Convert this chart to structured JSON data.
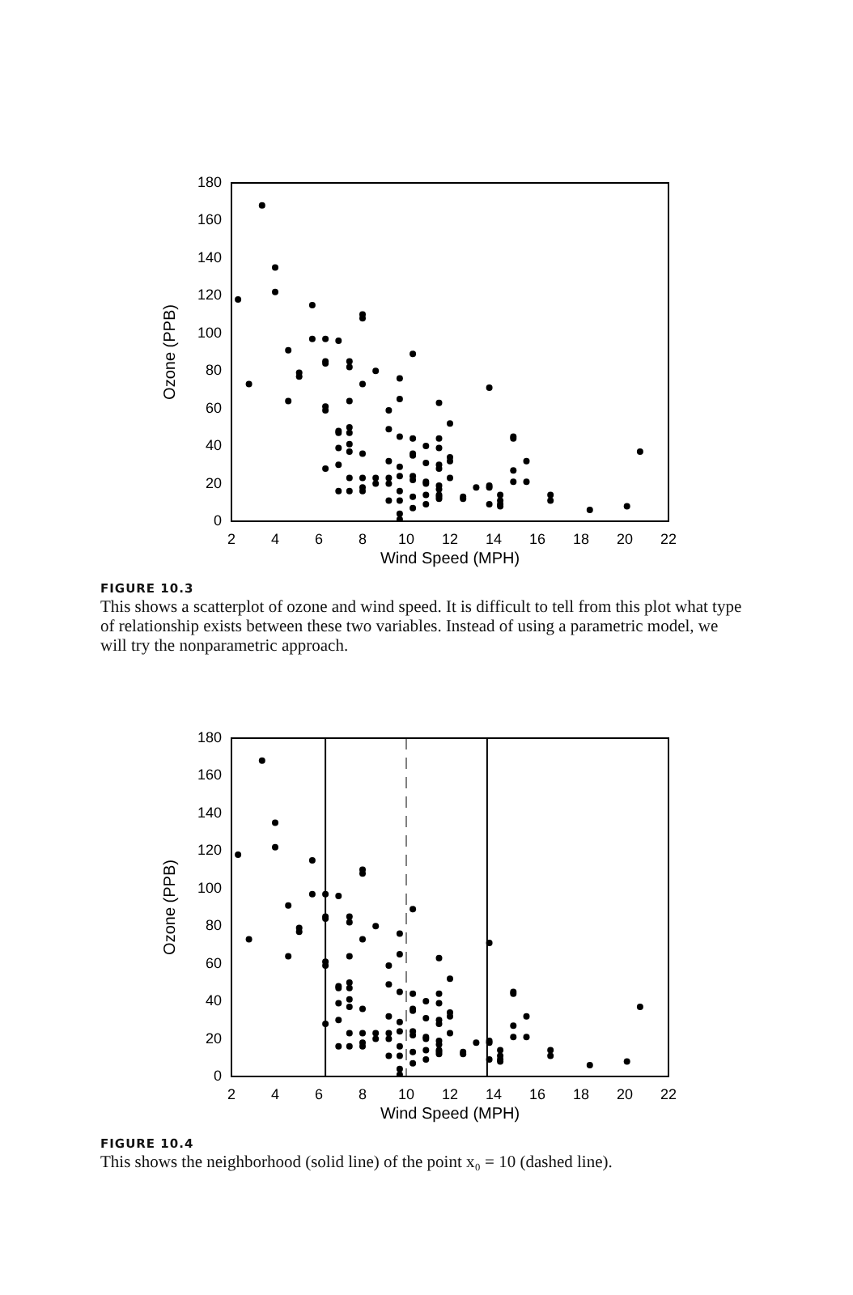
{
  "chart_data": [
    {
      "type": "scatter",
      "xlabel": "Wind Speed (MPH)",
      "ylabel": "Ozone (PPB)",
      "marker": "circle",
      "xlim": [
        2,
        22
      ],
      "xticks": [
        2,
        4,
        6,
        8,
        10,
        12,
        14,
        16,
        18,
        20,
        22
      ],
      "ylim": [
        0,
        180
      ],
      "yticks": [
        0,
        20,
        40,
        60,
        80,
        100,
        120,
        140,
        160,
        180
      ],
      "x": [
        2.3,
        2.8,
        3.4,
        4.0,
        4.0,
        4.6,
        4.6,
        5.1,
        5.1,
        5.7,
        5.7,
        6.3,
        6.3,
        6.3,
        6.3,
        6.3,
        6.3,
        6.9,
        6.9,
        6.9,
        6.9,
        6.9,
        6.9,
        7.4,
        7.4,
        7.4,
        7.4,
        7.4,
        7.4,
        7.4,
        7.4,
        7.4,
        8.0,
        8.0,
        8.0,
        8.0,
        8.0,
        8.0,
        8.0,
        8.6,
        8.6,
        8.6,
        9.2,
        9.2,
        9.2,
        9.2,
        9.2,
        9.2,
        9.7,
        9.7,
        9.7,
        9.7,
        9.7,
        9.7,
        9.7,
        9.7,
        9.7,
        10.3,
        10.3,
        10.3,
        10.3,
        10.3,
        10.3,
        10.3,
        10.3,
        10.9,
        10.9,
        10.9,
        10.9,
        10.9,
        10.9,
        11.5,
        11.5,
        11.5,
        11.5,
        11.5,
        11.5,
        11.5,
        11.5,
        11.5,
        11.5,
        12.0,
        12.0,
        12.0,
        12.0,
        12.6,
        12.6,
        13.2,
        13.8,
        13.8,
        13.8,
        13.8,
        14.3,
        14.3,
        14.3,
        14.3,
        14.9,
        14.9,
        14.9,
        14.9,
        15.5,
        15.5,
        16.6,
        16.6,
        18.4,
        20.1,
        20.7
      ],
      "series": [
        {
          "color": "#000000",
          "values": [
            118,
            73,
            168,
            135,
            122,
            91,
            64,
            79,
            77,
            115,
            97,
            97,
            85,
            84,
            61,
            59,
            28,
            96,
            48,
            47,
            39,
            30,
            16,
            85,
            82,
            64,
            50,
            47,
            41,
            37,
            23,
            16,
            110,
            108,
            73,
            36,
            23,
            18,
            16,
            80,
            23,
            20,
            59,
            49,
            32,
            23,
            20,
            11,
            76,
            65,
            45,
            29,
            24,
            16,
            11,
            4,
            1,
            89,
            44,
            36,
            35,
            24,
            22,
            13,
            7,
            40,
            31,
            21,
            20,
            14,
            9,
            63,
            44,
            39,
            30,
            28,
            19,
            17,
            14,
            13,
            12,
            52,
            34,
            32,
            23,
            13,
            12,
            18,
            71,
            19,
            18,
            9,
            14,
            11,
            9,
            8,
            45,
            44,
            27,
            21,
            32,
            21,
            14,
            11,
            6,
            8,
            37
          ]
        }
      ],
      "annotations": [
        "FIGURE 10.3",
        "This shows a scatterplot of ozone and wind speed. It is difficult to tell from this plot what type of relationship exists between these two variables. Instead of using a parametric model, we will try the nonparametric approach."
      ]
    },
    {
      "type": "scatter",
      "xlabel": "Wind Speed (MPH)",
      "ylabel": "Ozone (PPB)",
      "marker": "circle",
      "xlim": [
        2,
        22
      ],
      "xticks": [
        2,
        4,
        6,
        8,
        10,
        12,
        14,
        16,
        18,
        20,
        22
      ],
      "ylim": [
        0,
        180
      ],
      "yticks": [
        0,
        20,
        40,
        60,
        80,
        100,
        120,
        140,
        160,
        180
      ],
      "x": [
        2.3,
        2.8,
        3.4,
        4.0,
        4.0,
        4.6,
        4.6,
        5.1,
        5.1,
        5.7,
        5.7,
        6.3,
        6.3,
        6.3,
        6.3,
        6.3,
        6.3,
        6.9,
        6.9,
        6.9,
        6.9,
        6.9,
        6.9,
        7.4,
        7.4,
        7.4,
        7.4,
        7.4,
        7.4,
        7.4,
        7.4,
        7.4,
        8.0,
        8.0,
        8.0,
        8.0,
        8.0,
        8.0,
        8.0,
        8.6,
        8.6,
        8.6,
        9.2,
        9.2,
        9.2,
        9.2,
        9.2,
        9.2,
        9.7,
        9.7,
        9.7,
        9.7,
        9.7,
        9.7,
        9.7,
        9.7,
        9.7,
        10.3,
        10.3,
        10.3,
        10.3,
        10.3,
        10.3,
        10.3,
        10.3,
        10.9,
        10.9,
        10.9,
        10.9,
        10.9,
        10.9,
        11.5,
        11.5,
        11.5,
        11.5,
        11.5,
        11.5,
        11.5,
        11.5,
        11.5,
        11.5,
        12.0,
        12.0,
        12.0,
        12.0,
        12.6,
        12.6,
        13.2,
        13.8,
        13.8,
        13.8,
        13.8,
        14.3,
        14.3,
        14.3,
        14.3,
        14.9,
        14.9,
        14.9,
        14.9,
        15.5,
        15.5,
        16.6,
        16.6,
        18.4,
        20.1,
        20.7
      ],
      "series": [
        {
          "color": "#000000",
          "values": [
            118,
            73,
            168,
            135,
            122,
            91,
            64,
            79,
            77,
            115,
            97,
            97,
            85,
            84,
            61,
            59,
            28,
            96,
            48,
            47,
            39,
            30,
            16,
            85,
            82,
            64,
            50,
            47,
            41,
            37,
            23,
            16,
            110,
            108,
            73,
            36,
            23,
            18,
            16,
            80,
            23,
            20,
            59,
            49,
            32,
            23,
            20,
            11,
            76,
            65,
            45,
            29,
            24,
            16,
            11,
            4,
            1,
            89,
            44,
            36,
            35,
            24,
            22,
            13,
            7,
            40,
            31,
            21,
            20,
            14,
            9,
            63,
            44,
            39,
            30,
            28,
            19,
            17,
            14,
            13,
            12,
            52,
            34,
            32,
            23,
            13,
            12,
            18,
            71,
            19,
            18,
            9,
            14,
            11,
            9,
            8,
            45,
            44,
            27,
            21,
            32,
            21,
            14,
            11,
            6,
            8,
            37
          ]
        }
      ],
      "ref_lines": [
        {
          "axis": "x",
          "value": 6.3,
          "color": "#000000",
          "line_style": "solid"
        },
        {
          "axis": "x",
          "value": 13.7,
          "color": "#000000",
          "line_style": "solid"
        },
        {
          "axis": "x",
          "value": 10,
          "color": "#808080",
          "line_style": "dashed"
        }
      ],
      "annotations": [
        "FIGURE 10.4",
        "This shows the neighborhood (solid line) of the point x₀ = 10 (dashed line)."
      ]
    }
  ]
}
